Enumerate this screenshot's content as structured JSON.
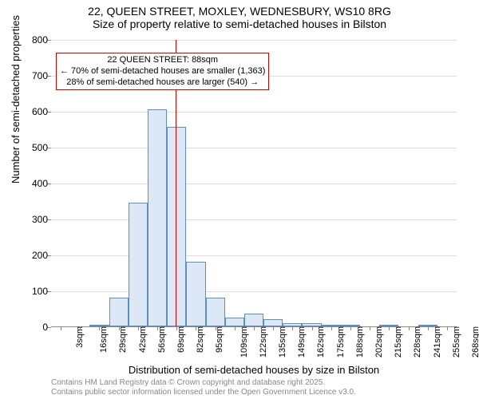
{
  "title": {
    "line1": "22, QUEEN STREET, MOXLEY, WEDNESBURY, WS10 8RG",
    "line2": "Size of property relative to semi-detached houses in Bilston"
  },
  "chart": {
    "type": "histogram",
    "background_color": "#ffffff",
    "grid_color": "#dddddd",
    "bar_fill": "#dce8f6",
    "bar_border": "#5b8fc4",
    "ref_line_color": "#cc0000",
    "ylabel": "Number of semi-detached properties",
    "xlabel": "Distribution of semi-detached houses by size in Bilston",
    "label_fontsize": 13,
    "ylim": [
      0,
      800
    ],
    "ytick_step": 100,
    "x_tick_labels": [
      "3sqm",
      "16sqm",
      "29sqm",
      "42sqm",
      "56sqm",
      "69sqm",
      "82sqm",
      "95sqm",
      "109sqm",
      "122sqm",
      "135sqm",
      "149sqm",
      "162sqm",
      "175sqm",
      "188sqm",
      "202sqm",
      "215sqm",
      "228sqm",
      "241sqm",
      "255sqm",
      "268sqm"
    ],
    "values": [
      0,
      0,
      5,
      80,
      345,
      605,
      555,
      180,
      80,
      25,
      35,
      20,
      10,
      10,
      5,
      4,
      0,
      4,
      0,
      4,
      0
    ],
    "ref_value_index": 6.45,
    "annot": {
      "line1": "22 QUEEN STREET: 88sqm",
      "line2": "← 70% of semi-detached houses are smaller (1,363)",
      "line3": "28% of semi-detached houses are larger (540) →"
    }
  },
  "footer": {
    "line1": "Contains HM Land Registry data © Crown copyright and database right 2025.",
    "line2": "Contains public sector information licensed under the Open Government Licence v3.0."
  }
}
